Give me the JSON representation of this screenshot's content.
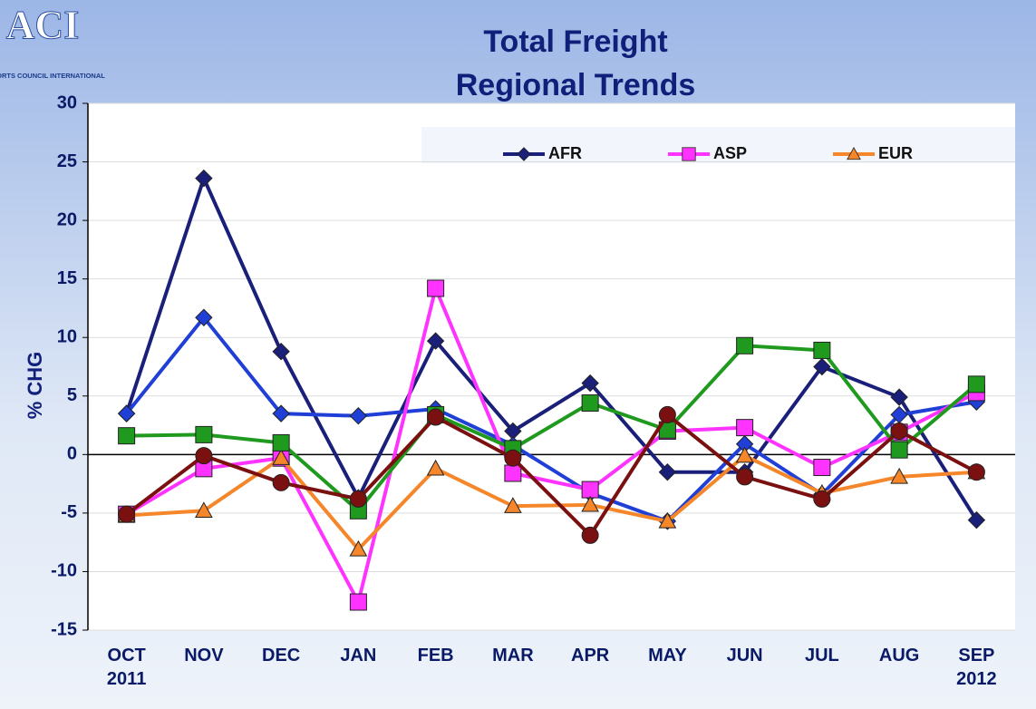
{
  "logo": {
    "mark": "ACI",
    "name": "AIRPORTS COUNCIL INTERNATIONAL"
  },
  "chart_data": {
    "type": "line",
    "title": "Total Freight",
    "subtitle": "Regional Trends",
    "y_label": "% CHG",
    "categories": [
      "OCT\n2011",
      "NOV",
      "DEC",
      "JAN",
      "FEB",
      "MAR",
      "APR",
      "MAY",
      "JUN",
      "JUL",
      "AUG",
      "SEP\n2012"
    ],
    "ylim": [
      -15,
      30
    ],
    "yticks": [
      -15,
      -10,
      -5,
      0,
      5,
      10,
      15,
      20,
      25,
      30
    ],
    "grid": true,
    "legend": "top",
    "series": [
      {
        "name": "AFR",
        "color": "#1a1f7a",
        "marker": "diamond",
        "values": [
          3.5,
          23.6,
          8.8,
          -3.7,
          9.7,
          2.0,
          6.1,
          -1.5,
          -1.5,
          7.5,
          4.9,
          -5.6
        ]
      },
      {
        "color": "#1f3fd6",
        "marker": "diamond",
        "values": [
          3.5,
          11.7,
          3.5,
          3.3,
          3.9,
          0.8,
          -3.3,
          -5.7,
          0.9,
          -3.4,
          3.4,
          4.5
        ]
      },
      {
        "name": "ASP",
        "color": "#ff33ff",
        "marker": "square",
        "values": [
          -5.1,
          -1.2,
          -0.3,
          -12.6,
          14.2,
          -1.6,
          -3.0,
          2.0,
          2.3,
          -1.1,
          1.9,
          5.3
        ]
      },
      {
        "name": "EUR",
        "color": "#f5862a",
        "marker": "triangle",
        "values": [
          -5.2,
          -4.8,
          -0.3,
          -8.1,
          -1.2,
          -4.4,
          -4.3,
          -5.7,
          -0.1,
          -3.3,
          -1.9,
          -1.5
        ]
      },
      {
        "color": "#1f9a1f",
        "marker": "square",
        "values": [
          1.6,
          1.7,
          1.0,
          -4.8,
          3.4,
          0.5,
          4.4,
          2.1,
          9.3,
          8.9,
          0.4,
          6.0
        ]
      },
      {
        "color": "#7a1010",
        "marker": "circle",
        "values": [
          -5.1,
          -0.1,
          -2.4,
          -3.8,
          3.2,
          -0.3,
          -6.9,
          3.4,
          -1.9,
          -3.8,
          2.0,
          -1.5
        ]
      }
    ]
  }
}
